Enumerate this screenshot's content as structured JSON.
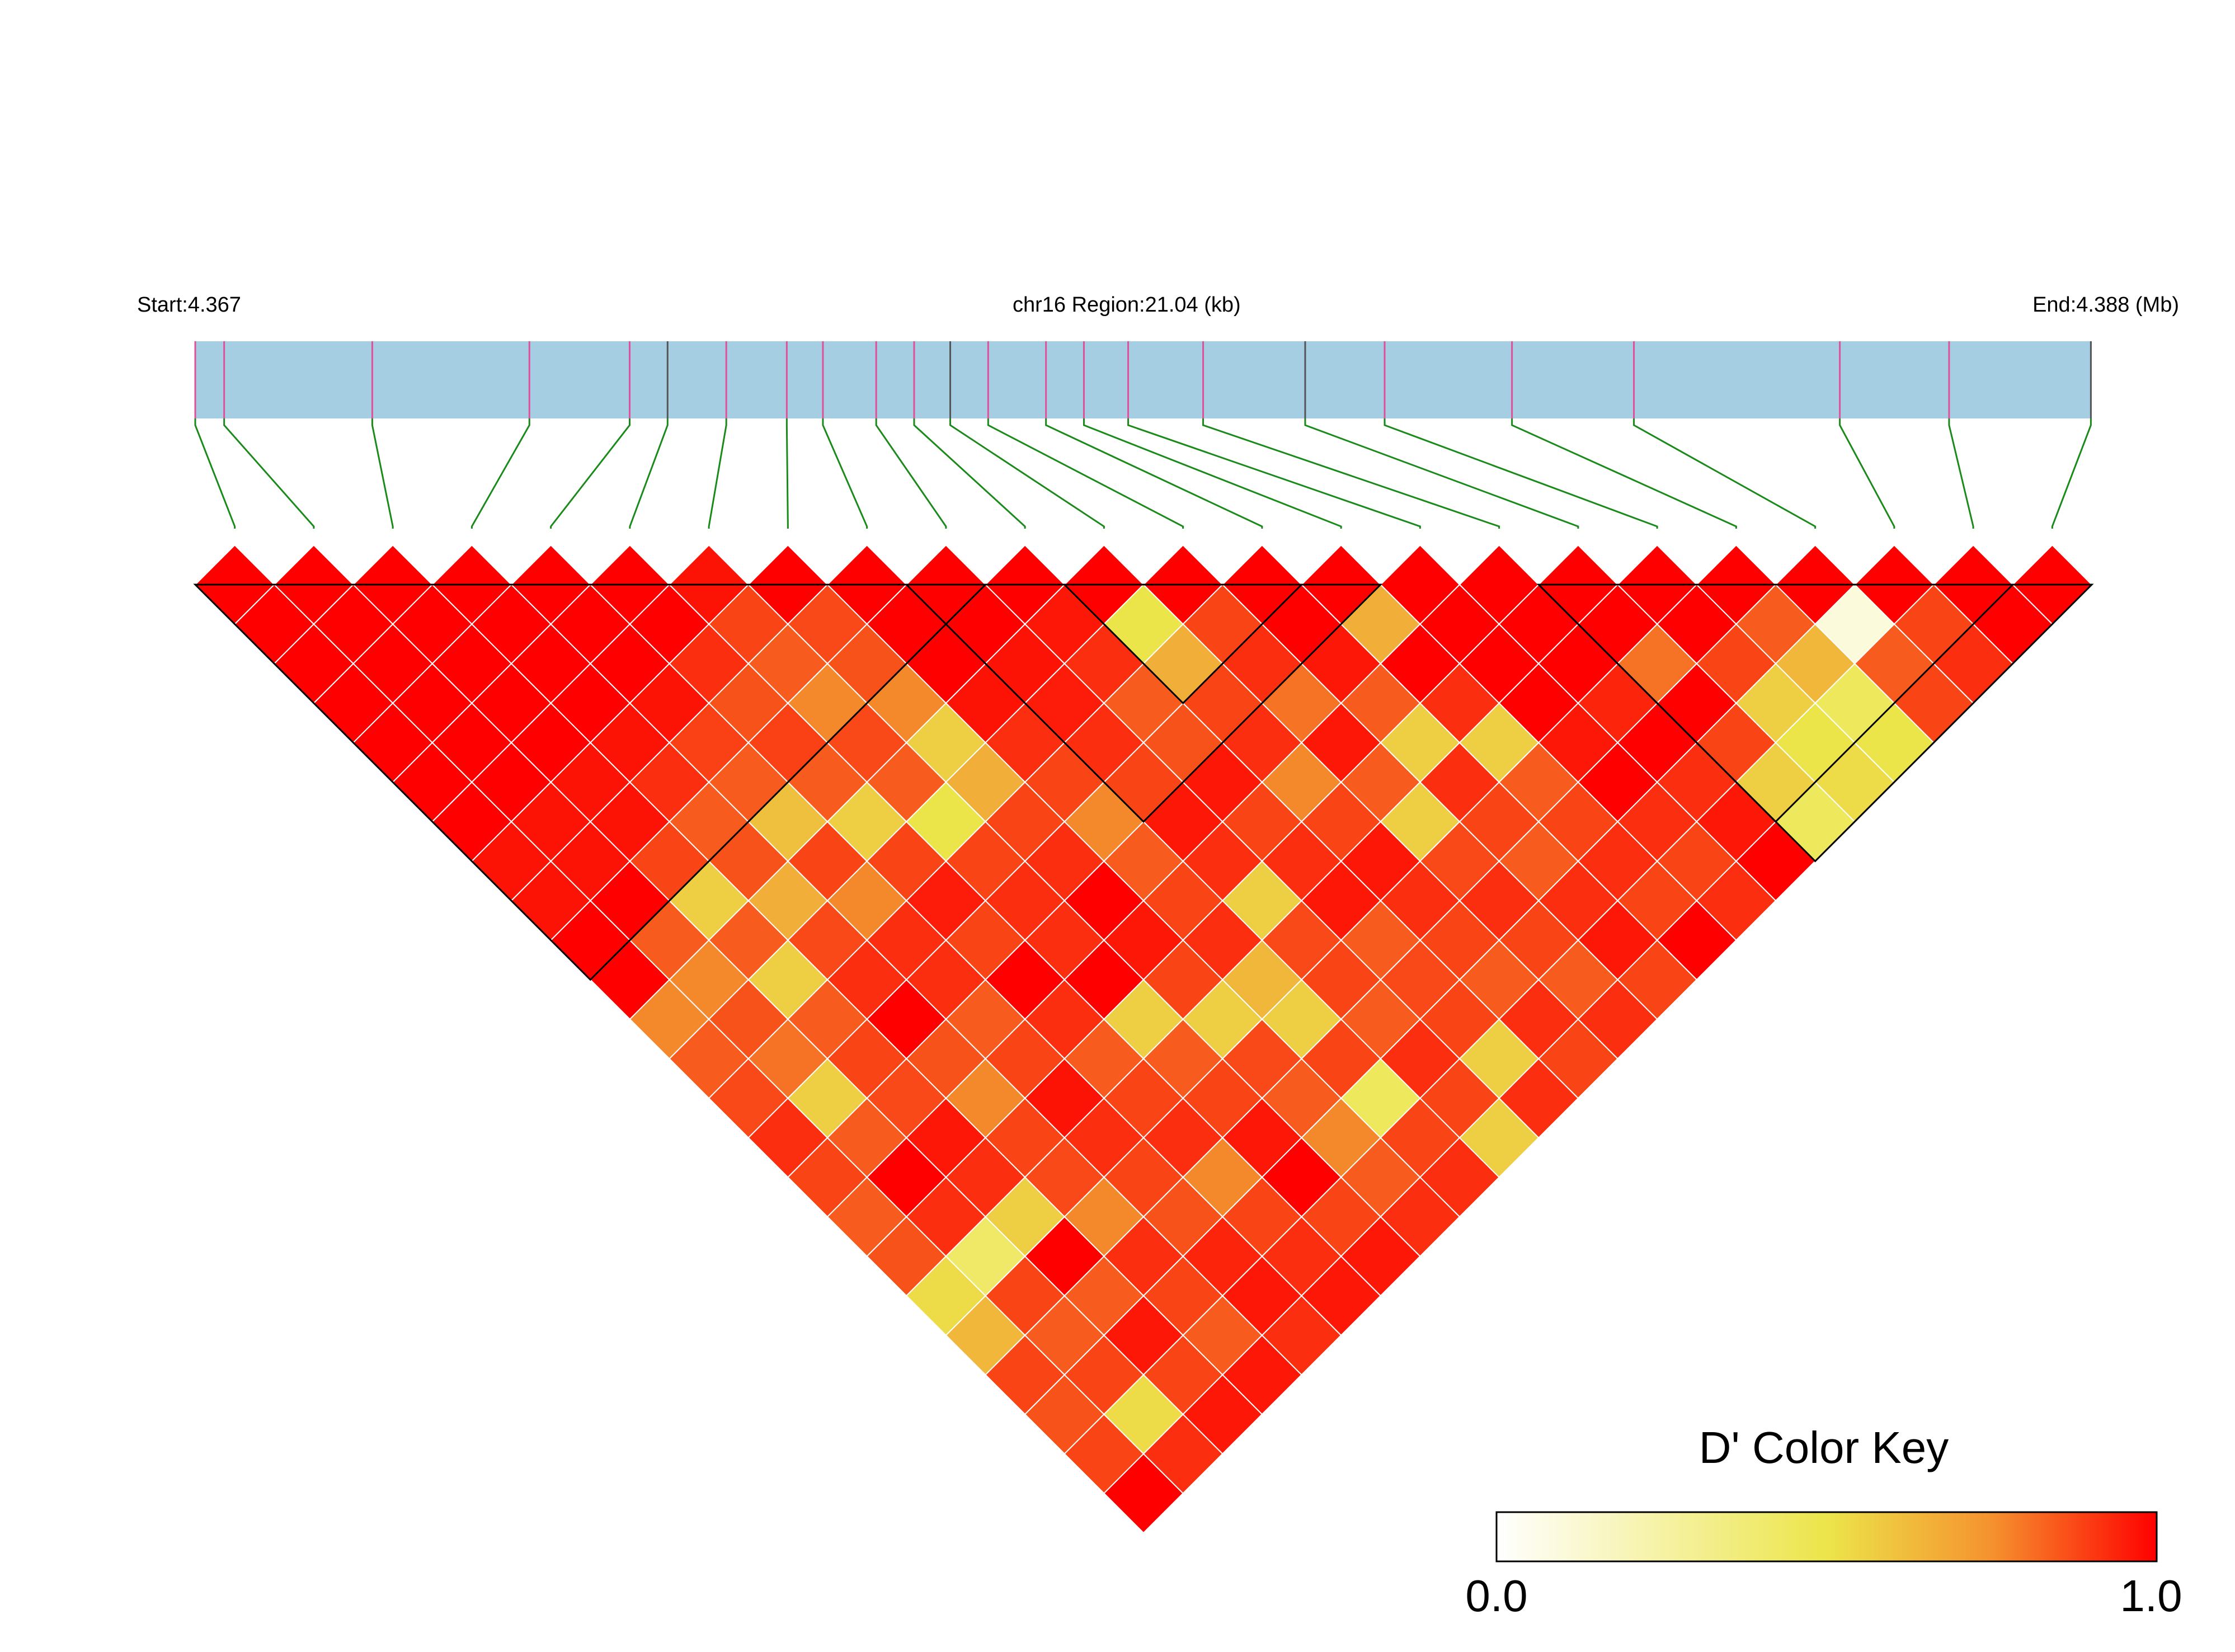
{
  "colors": {
    "region_bar": "#a6cee3",
    "snp_tick": "#e0509a",
    "snp_tick_alt": "#555555",
    "connector": "#1a8a1a",
    "cell_outline": "#ffffff",
    "block_outline": "#000000",
    "key_low": "#ffffff",
    "key_mid": "#ece54a",
    "key_high": "#ff0000"
  },
  "header": {
    "start_label": "Start:4.367",
    "region_label": "chr16 Region:21.04 (kb)",
    "end_label": "End:4.388 (Mb)"
  },
  "color_key": {
    "title": "D' Color Key",
    "min_label": "0.0",
    "max_label": "1.0"
  },
  "chart_data": {
    "type": "heatmap",
    "description_of_axes": "pairwise linkage disequilibrium (D') between SNPs",
    "chromosome": "chr16",
    "region_start_mb": 4.367,
    "region_end_mb": 4.388,
    "region_span_kb": 21.04,
    "snp_count": 24,
    "snp_positions_mb": [
      4.367,
      4.36732,
      4.36896,
      4.3707,
      4.37181,
      4.37223,
      4.37288,
      4.37355,
      4.37395,
      4.37454,
      4.37496,
      4.37536,
      4.37578,
      4.37642,
      4.37684,
      4.37733,
      4.37816,
      4.37929,
      4.38017,
      4.38158,
      4.38293,
      4.38521,
      4.38642,
      4.38799
    ],
    "d_prime_matrix": [
      [
        1.0,
        1.0,
        1.0,
        1.0,
        1.0,
        1.0,
        1.0,
        0.96,
        0.96,
        1.0,
        1.0,
        0.7,
        0.8,
        0.84,
        0.9,
        0.85,
        0.8,
        0.82,
        0.52,
        0.6,
        0.85,
        0.82,
        0.85,
        1.0
      ],
      [
        1.0,
        1.0,
        1.0,
        1.0,
        1.0,
        1.0,
        1.0,
        0.96,
        0.96,
        1.0,
        0.8,
        0.7,
        0.82,
        0.75,
        0.55,
        0.8,
        1.0,
        0.9,
        0.42,
        0.85,
        0.8,
        0.85,
        0.52,
        0.9
      ],
      [
        1.0,
        1.0,
        1.0,
        1.0,
        1.0,
        1.0,
        1.0,
        0.96,
        0.96,
        0.85,
        0.55,
        0.8,
        0.55,
        0.8,
        0.85,
        0.84,
        0.95,
        0.9,
        0.55,
        1.0,
        0.8,
        0.95,
        0.85,
        0.95
      ],
      [
        1.0,
        1.0,
        1.0,
        1.0,
        1.0,
        1.0,
        1.0,
        0.96,
        0.9,
        0.8,
        0.82,
        0.62,
        0.84,
        0.9,
        1.0,
        0.82,
        0.7,
        0.85,
        0.84,
        0.7,
        0.9,
        0.85,
        0.8,
        0.95
      ],
      [
        1.0,
        1.0,
        1.0,
        1.0,
        1.0,
        1.0,
        1.0,
        0.96,
        0.86,
        0.8,
        0.58,
        0.85,
        0.7,
        0.9,
        0.9,
        0.8,
        0.85,
        0.96,
        0.9,
        0.85,
        0.82,
        0.92,
        0.95,
        0.9
      ],
      [
        1.0,
        1.0,
        1.0,
        1.0,
        1.0,
        1.0,
        1.0,
        0.9,
        0.82,
        0.86,
        0.8,
        0.55,
        0.85,
        0.94,
        0.85,
        1.0,
        0.9,
        0.8,
        0.85,
        0.9,
        0.7,
        0.85,
        0.9,
        0.95
      ],
      [
        1.0,
        1.0,
        1.0,
        1.0,
        1.0,
        1.0,
        0.96,
        0.85,
        0.8,
        0.7,
        0.84,
        0.8,
        0.5,
        0.85,
        0.9,
        0.9,
        1.0,
        0.55,
        0.8,
        0.85,
        0.95,
        1.0,
        0.85,
        0.95
      ],
      [
        0.96,
        0.96,
        0.96,
        0.96,
        0.96,
        0.9,
        0.85,
        1.0,
        0.84,
        0.82,
        0.7,
        0.55,
        0.62,
        0.85,
        0.9,
        1.0,
        0.95,
        0.85,
        0.55,
        0.84,
        0.8,
        0.7,
        0.8,
        0.9
      ],
      [
        0.96,
        0.96,
        0.96,
        0.9,
        0.86,
        0.82,
        0.8,
        0.84,
        1.0,
        1.0,
        1.0,
        0.96,
        0.9,
        0.85,
        0.7,
        0.8,
        0.85,
        0.9,
        0.6,
        0.55,
        0.85,
        0.45,
        0.85,
        0.9
      ],
      [
        1.0,
        1.0,
        0.85,
        0.8,
        0.8,
        0.86,
        0.7,
        0.82,
        1.0,
        1.0,
        1.0,
        0.96,
        0.94,
        0.9,
        0.85,
        0.95,
        0.9,
        0.55,
        0.84,
        0.85,
        0.8,
        0.9,
        0.85,
        0.55
      ],
      [
        1.0,
        0.8,
        0.55,
        0.82,
        0.58,
        0.8,
        0.84,
        0.7,
        1.0,
        1.0,
        1.0,
        0.95,
        0.9,
        0.8,
        0.82,
        0.95,
        0.85,
        0.9,
        0.95,
        0.8,
        0.84,
        0.85,
        0.55,
        0.9
      ],
      [
        0.7,
        0.7,
        0.8,
        0.62,
        0.85,
        0.55,
        0.8,
        0.55,
        0.96,
        0.96,
        0.95,
        1.0,
        0.5,
        0.62,
        0.85,
        0.9,
        0.7,
        0.85,
        0.95,
        0.9,
        0.85,
        0.8,
        0.9,
        0.85
      ],
      [
        0.8,
        0.82,
        0.55,
        0.84,
        0.7,
        0.85,
        0.5,
        0.62,
        0.9,
        0.94,
        0.9,
        0.5,
        1.0,
        0.85,
        0.9,
        0.75,
        0.95,
        0.8,
        0.55,
        0.84,
        0.9,
        0.85,
        0.8,
        0.9
      ],
      [
        0.84,
        0.75,
        0.8,
        0.9,
        0.9,
        0.94,
        0.85,
        0.85,
        0.85,
        0.9,
        0.8,
        0.62,
        0.85,
        1.0,
        1.0,
        0.95,
        0.8,
        0.55,
        0.9,
        0.85,
        0.8,
        0.9,
        0.95,
        0.85
      ],
      [
        0.9,
        0.55,
        0.85,
        1.0,
        0.9,
        0.85,
        0.9,
        0.9,
        0.7,
        0.85,
        0.82,
        0.85,
        0.9,
        1.0,
        1.0,
        0.62,
        1.0,
        0.9,
        0.55,
        0.8,
        0.85,
        0.9,
        0.85,
        1.0
      ],
      [
        0.85,
        0.8,
        0.84,
        0.82,
        0.8,
        1.0,
        0.9,
        1.0,
        0.8,
        0.95,
        0.95,
        0.9,
        0.75,
        0.95,
        0.62,
        1.0,
        1.0,
        1.0,
        1.0,
        0.95,
        1.0,
        0.9,
        0.85,
        0.9
      ],
      [
        0.8,
        1.0,
        0.95,
        0.7,
        0.85,
        0.9,
        1.0,
        0.95,
        0.85,
        0.9,
        0.85,
        0.7,
        0.95,
        0.8,
        1.0,
        1.0,
        1.0,
        1.0,
        1.0,
        0.92,
        1.0,
        0.9,
        0.95,
        1.0
      ],
      [
        0.82,
        0.9,
        0.9,
        0.85,
        0.96,
        0.8,
        0.55,
        0.85,
        0.9,
        0.55,
        0.9,
        0.85,
        0.8,
        0.55,
        0.9,
        1.0,
        1.0,
        1.0,
        1.0,
        0.75,
        1.0,
        0.85,
        0.55,
        0.45
      ],
      [
        0.52,
        0.42,
        0.55,
        0.84,
        0.9,
        0.85,
        0.8,
        0.55,
        0.6,
        0.84,
        0.95,
        0.95,
        0.55,
        0.9,
        0.55,
        1.0,
        1.0,
        1.0,
        1.0,
        1.0,
        0.85,
        0.55,
        0.5,
        0.52
      ],
      [
        0.6,
        0.85,
        1.0,
        0.7,
        0.85,
        0.9,
        0.85,
        0.84,
        0.55,
        0.85,
        0.8,
        0.9,
        0.84,
        0.85,
        0.8,
        0.95,
        0.92,
        0.75,
        1.0,
        1.0,
        0.8,
        0.6,
        0.45,
        0.5
      ],
      [
        0.85,
        0.8,
        0.8,
        0.9,
        0.82,
        0.7,
        0.95,
        0.8,
        0.85,
        0.8,
        0.84,
        0.85,
        0.9,
        0.8,
        0.85,
        1.0,
        1.0,
        1.0,
        0.85,
        0.8,
        1.0,
        0.1,
        0.8,
        0.85
      ],
      [
        0.82,
        0.85,
        0.95,
        0.85,
        0.92,
        0.85,
        1.0,
        0.7,
        0.45,
        0.9,
        0.85,
        0.8,
        0.85,
        0.9,
        0.9,
        0.9,
        0.9,
        0.85,
        0.55,
        0.6,
        0.1,
        1.0,
        0.85,
        0.9
      ],
      [
        0.85,
        0.52,
        0.85,
        0.8,
        0.95,
        0.9,
        0.85,
        0.8,
        0.85,
        0.85,
        0.55,
        0.9,
        0.8,
        0.95,
        0.85,
        0.85,
        0.95,
        0.55,
        0.5,
        0.45,
        0.8,
        0.85,
        1.0,
        1.0
      ],
      [
        1.0,
        0.9,
        0.95,
        0.95,
        0.9,
        0.95,
        0.95,
        0.9,
        0.9,
        0.55,
        0.9,
        0.85,
        0.9,
        0.85,
        1.0,
        0.9,
        1.0,
        0.45,
        0.52,
        0.5,
        0.85,
        0.9,
        1.0,
        1.0
      ]
    ],
    "ld_blocks": [
      {
        "from_snp": 1,
        "to_snp": 10
      },
      {
        "from_snp": 10,
        "to_snp": 15
      },
      {
        "from_snp": 12,
        "to_snp": 14
      },
      {
        "from_snp": 18,
        "to_snp": 24
      },
      {
        "from_snp": 18,
        "to_snp": 23
      }
    ],
    "color_scale": {
      "min": 0.0,
      "max": 1.0,
      "low_color": "#ffffff",
      "mid_color": "#ece54a",
      "high_color": "#ff0000"
    }
  }
}
